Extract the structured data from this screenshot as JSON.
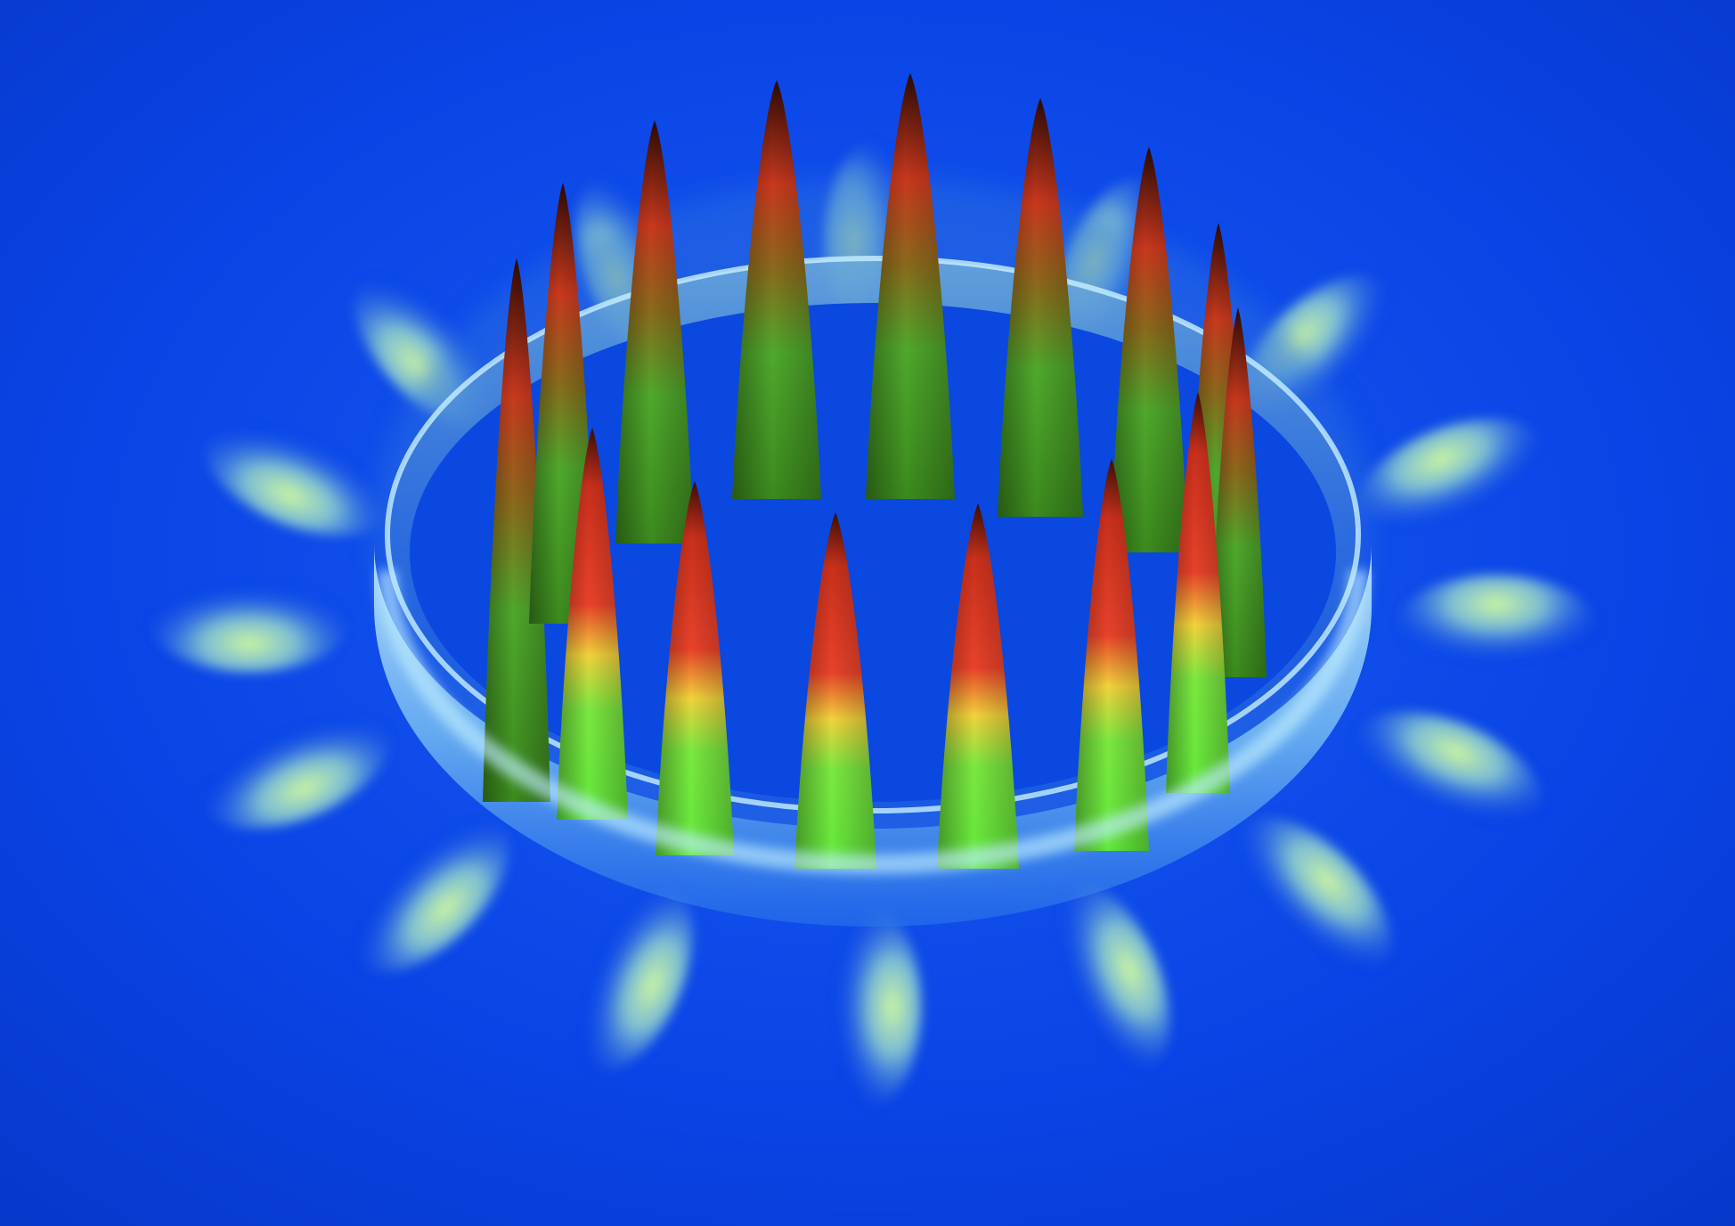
{
  "image": {
    "subject": "3d-surface-plot",
    "colors": {
      "background": "#0a44e6",
      "background_dark": "#0637c9",
      "ring": "#7fc6f2",
      "ring_highlight": "#c8f0ff",
      "peak_base": "#62e83a",
      "peak_mid": "#f2d23c",
      "peak_top": "#e8422a",
      "peak_tip": "#3a0e06",
      "ripple": "#aef0c8"
    },
    "peaks": {
      "count": 16,
      "ring_count": 1,
      "outer_ripple_count": 16
    }
  }
}
